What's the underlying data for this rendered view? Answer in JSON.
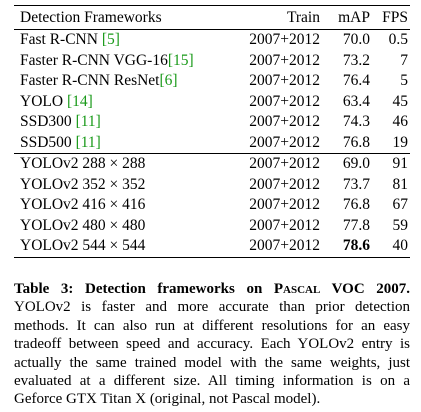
{
  "table": {
    "headers": [
      "Detection Frameworks",
      "Train",
      "mAP",
      "FPS"
    ],
    "group1": [
      {
        "name": "Fast R-CNN ",
        "cite": "[5]",
        "train": "2007+2012",
        "map": "70.0",
        "fps": "0.5"
      },
      {
        "name": "Faster R-CNN VGG-16",
        "cite": "[15]",
        "train": "2007+2012",
        "map": "73.2",
        "fps": "7"
      },
      {
        "name": "Faster R-CNN ResNet",
        "cite": "[6]",
        "train": "2007+2012",
        "map": "76.4",
        "fps": "5"
      },
      {
        "name": "YOLO ",
        "cite": "[14]",
        "train": "2007+2012",
        "map": "63.4",
        "fps": "45"
      },
      {
        "name": "SSD300 ",
        "cite": "[11]",
        "train": "2007+2012",
        "map": "74.3",
        "fps": "46"
      },
      {
        "name": "SSD500 ",
        "cite": "[11]",
        "train": "2007+2012",
        "map": "76.8",
        "fps": "19"
      }
    ],
    "group2": [
      {
        "name": "YOLOv2 288 × 288",
        "train": "2007+2012",
        "map": "69.0",
        "fps": "91"
      },
      {
        "name": "YOLOv2 352 × 352",
        "train": "2007+2012",
        "map": "73.7",
        "fps": "81"
      },
      {
        "name": "YOLOv2 416 × 416",
        "train": "2007+2012",
        "map": "76.8",
        "fps": "67"
      },
      {
        "name": "YOLOv2 480 × 480",
        "train": "2007+2012",
        "map": "77.8",
        "fps": "59"
      },
      {
        "name": "YOLOv2 544 × 544",
        "train": "2007+2012",
        "map": "78.6",
        "fps": "40"
      }
    ]
  },
  "caption": {
    "label": "Table 3:",
    "title_pre": "Detection frameworks on ",
    "title_sc": "Pascal",
    "title_post": " VOC 2007.",
    "body": "YOLOv2 is faster and more accurate than prior detection methods. It can also run at different resolutions for an easy tradeoff between speed and accuracy. Each YOLOv2 entry is actually the same trained model with the same weights, just evaluated at a different size. All timing information is on a Geforce GTX Titan X (original, not Pascal model)."
  }
}
